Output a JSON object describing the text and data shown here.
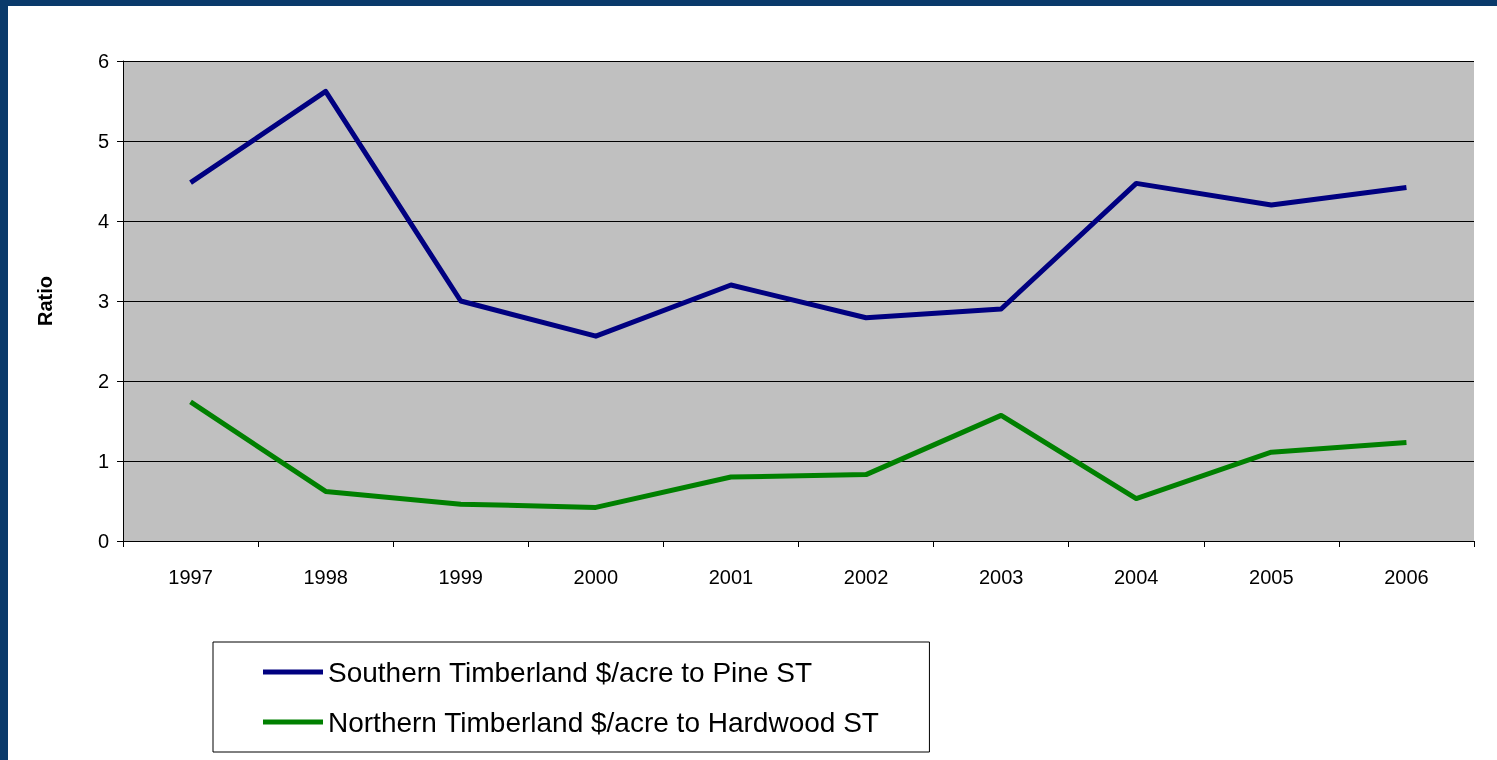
{
  "chart_data": {
    "type": "line",
    "ylabel": "Ratio",
    "categories": [
      "1997",
      "1998",
      "1999",
      "2000",
      "2001",
      "2002",
      "2003",
      "2004",
      "2005",
      "2006"
    ],
    "series": [
      {
        "name": "Southern Timberland $/acre to Pine ST",
        "color": "#000080",
        "values": [
          4.48,
          5.62,
          3.0,
          2.56,
          3.2,
          2.79,
          2.9,
          4.47,
          4.2,
          4.42
        ]
      },
      {
        "name": "Northern Timberland $/acre to Hardwood ST",
        "color": "#008000",
        "values": [
          1.74,
          0.62,
          0.46,
          0.42,
          0.8,
          0.83,
          1.57,
          0.53,
          1.11,
          1.23
        ]
      }
    ],
    "ylim": [
      0,
      6
    ],
    "yticks": [
      0,
      1,
      2,
      3,
      4,
      5,
      6
    ],
    "grid": "y",
    "legend": "bottom",
    "marker": "none",
    "line_style": "solid"
  }
}
